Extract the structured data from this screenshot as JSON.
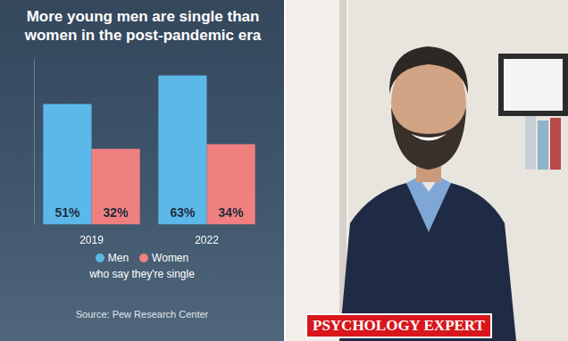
{
  "chart_data": {
    "type": "bar",
    "title": "More young men are single than women in the post-pandemic era",
    "categories": [
      "2019",
      "2022"
    ],
    "series": [
      {
        "name": "Men",
        "color": "#5cb8e8",
        "values": [
          51,
          63
        ],
        "value_labels": [
          "51%",
          "63%"
        ]
      },
      {
        "name": "Women",
        "color": "#f08080",
        "values": [
          32,
          34
        ],
        "value_labels": [
          "32%",
          "34%"
        ]
      }
    ],
    "ylim": [
      0,
      70
    ],
    "grid": false,
    "tick_labels": "x",
    "data_labels": true,
    "legend": "bottom",
    "annotations": [
      "who say they're single",
      "Source: Pew Research Center"
    ]
  },
  "photo": {
    "caption": "PSYCHOLOGY EXPERT"
  }
}
